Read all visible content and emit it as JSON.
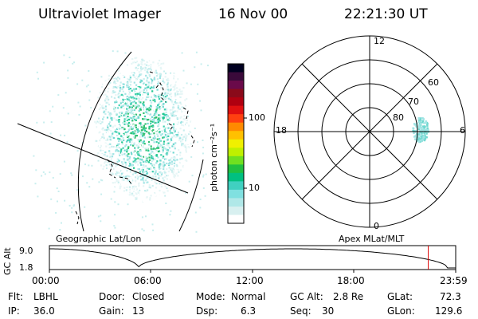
{
  "header": {
    "instrument": "Ultraviolet Imager",
    "date": "16 Nov 00",
    "time": "22:21:30 UT"
  },
  "left_panel": {
    "label": "Geographic Lat/Lon"
  },
  "colorbar": {
    "unit_label": "photon cm⁻²s⁻¹",
    "ticks": [
      "100",
      "10"
    ],
    "colors": [
      "#000020",
      "#3a0a3a",
      "#6a0a4a",
      "#8a0a1a",
      "#b00010",
      "#e01010",
      "#ff4010",
      "#ff8a00",
      "#ffc000",
      "#f0f000",
      "#c0f000",
      "#70e020",
      "#20c040",
      "#00c080",
      "#40d0c0",
      "#80e0e0",
      "#b0e8e8",
      "#d8f0f0",
      "#ffffff"
    ]
  },
  "right_panel": {
    "label": "Apex MLat/MLT",
    "mlt_labels": {
      "top": "12",
      "left": "18",
      "right": "6",
      "bottom": "0"
    },
    "lat_labels": [
      "60",
      "70",
      "80"
    ]
  },
  "timeline": {
    "ylabel": "GC Alt",
    "y_ticks": [
      "9.0",
      "1.8"
    ],
    "x_ticks": [
      "00:00",
      "06:00",
      "12:00",
      "18:00",
      "23:59"
    ],
    "current_fraction": 0.9325,
    "marker_color": "#dd0000"
  },
  "status": {
    "flt_label": "Flt:",
    "flt_value": "LBHL",
    "ip_label": "IP:",
    "ip_value": "36.0",
    "door_label": "Door:",
    "door_value": "Closed",
    "gain_label": "Gain:",
    "gain_value": "13",
    "mode_label": "Mode:",
    "mode_value": "Normal",
    "dsp_label": "Dsp:",
    "dsp_value": "6.3",
    "gcalt_label": "GC Alt:",
    "gcalt_value": "2.8 Re",
    "seq_label": "Seq:",
    "seq_value": "30",
    "glat_label": "GLat:",
    "glat_value": "72.3",
    "glon_label": "GLon:",
    "glon_value": "129.6"
  }
}
